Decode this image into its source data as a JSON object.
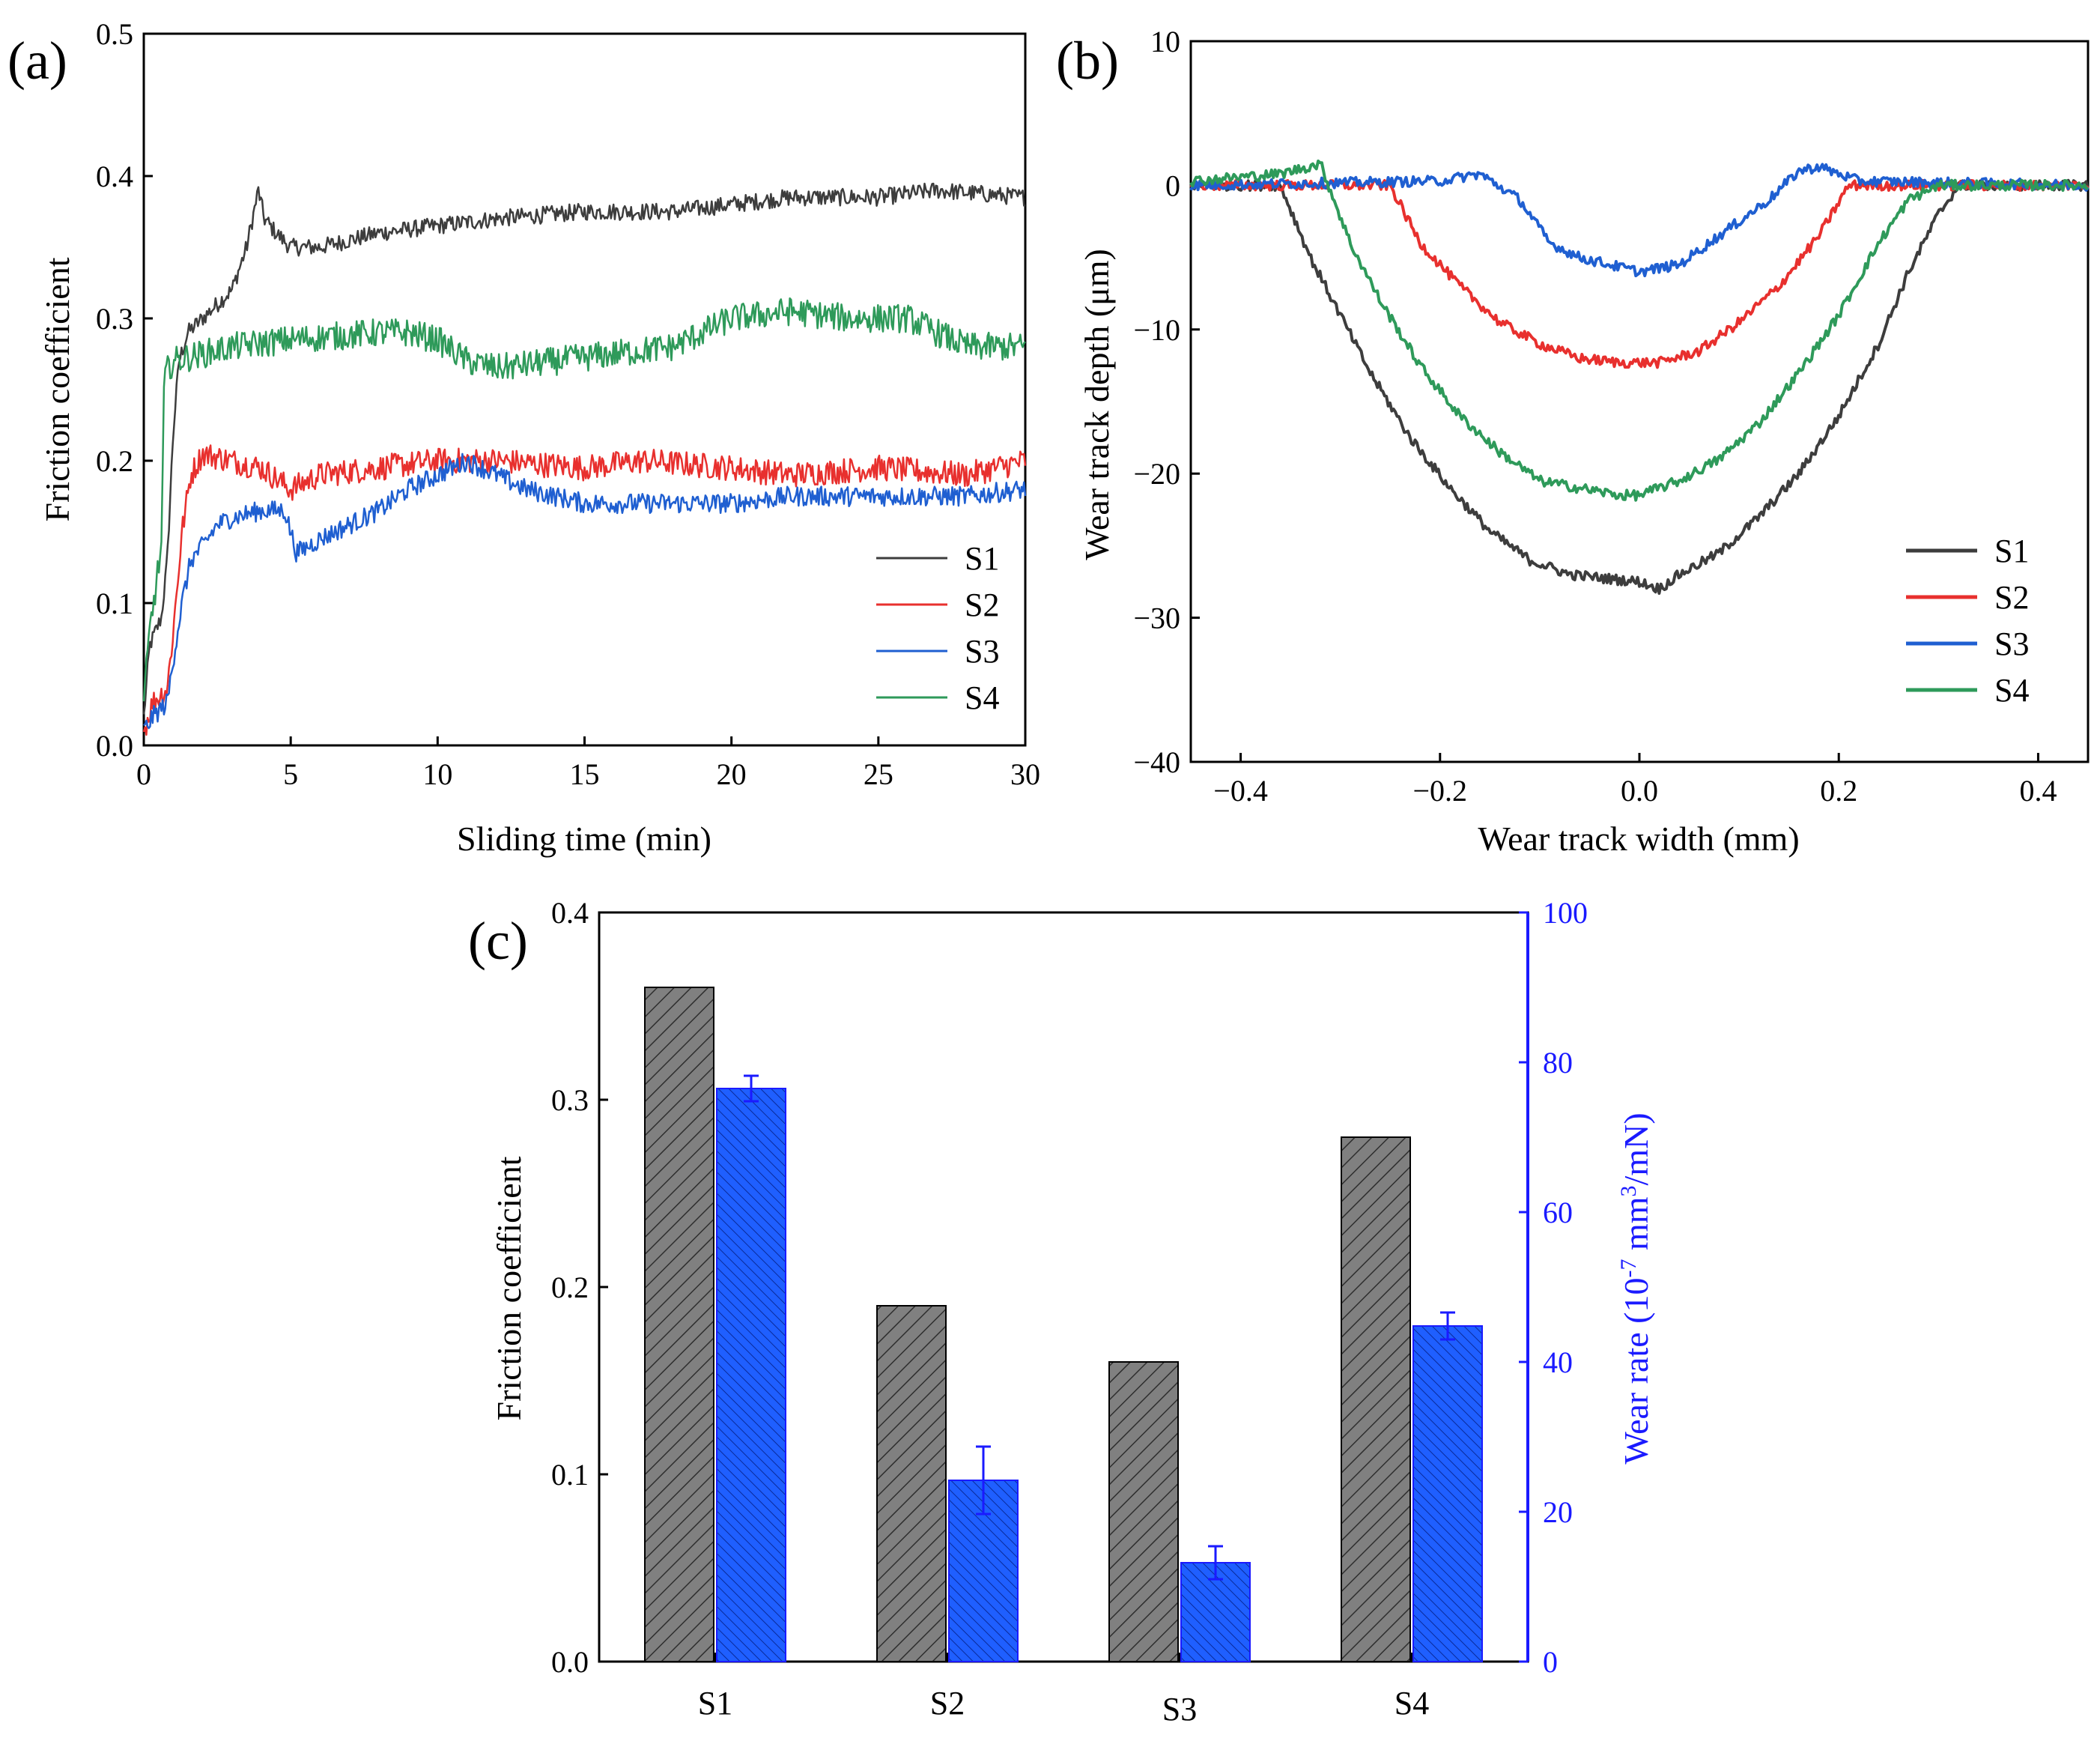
{
  "chart_data": [
    {
      "panel": "(a)",
      "type": "line",
      "xlabel": "Sliding time (min)",
      "ylabel": "Friction coefficient",
      "xlim": [
        0,
        30
      ],
      "ylim": [
        0.0,
        0.5
      ],
      "xticks": [
        "0",
        "5",
        "10",
        "15",
        "20",
        "25",
        "30"
      ],
      "yticks": [
        "0.0",
        "0.1",
        "0.2",
        "0.3",
        "0.4",
        "0.5"
      ],
      "legend_position": "bottom-right",
      "series": [
        {
          "name": "S1",
          "color": "#3d3d3d",
          "x": [
            0,
            0.2,
            0.6,
            0.8,
            1.0,
            1.2,
            1.5,
            2.0,
            2.5,
            3.0,
            3.5,
            3.9,
            4.1,
            4.5,
            5,
            6,
            7,
            8,
            10,
            12,
            15,
            18,
            20,
            22,
            25,
            27,
            30
          ],
          "y": [
            0.02,
            0.07,
            0.09,
            0.13,
            0.22,
            0.27,
            0.29,
            0.3,
            0.31,
            0.32,
            0.35,
            0.39,
            0.37,
            0.36,
            0.35,
            0.35,
            0.355,
            0.36,
            0.365,
            0.37,
            0.375,
            0.375,
            0.38,
            0.385,
            0.385,
            0.39,
            0.385
          ]
        },
        {
          "name": "S2",
          "color": "#e8302e",
          "x": [
            0,
            0.3,
            0.8,
            1.0,
            1.3,
            1.6,
            2.0,
            3,
            4,
            5,
            6,
            8,
            10,
            12,
            15,
            17,
            20,
            22,
            25,
            28,
            30
          ],
          "y": [
            0.01,
            0.03,
            0.04,
            0.08,
            0.15,
            0.19,
            0.205,
            0.2,
            0.195,
            0.18,
            0.19,
            0.195,
            0.2,
            0.2,
            0.195,
            0.2,
            0.195,
            0.19,
            0.195,
            0.19,
            0.2
          ]
        },
        {
          "name": "S3",
          "color": "#1f5fd1",
          "x": [
            0,
            0.3,
            0.8,
            1.0,
            1.3,
            1.6,
            2.0,
            2.5,
            3,
            4,
            4.8,
            5.2,
            6,
            7,
            8,
            9,
            10,
            11,
            12,
            13,
            14,
            15,
            17,
            20,
            22,
            25,
            28,
            30
          ],
          "y": [
            0.01,
            0.02,
            0.03,
            0.06,
            0.1,
            0.13,
            0.14,
            0.155,
            0.16,
            0.165,
            0.165,
            0.135,
            0.145,
            0.155,
            0.165,
            0.18,
            0.19,
            0.2,
            0.19,
            0.18,
            0.175,
            0.17,
            0.17,
            0.17,
            0.175,
            0.175,
            0.175,
            0.18
          ]
        },
        {
          "name": "S4",
          "color": "#2e9a5a",
          "x": [
            0,
            0.2,
            0.4,
            0.6,
            0.7,
            1.0,
            2,
            3,
            5,
            8,
            9,
            10,
            11,
            12,
            14,
            16,
            18,
            19,
            20,
            22,
            24,
            26,
            27,
            28,
            30
          ],
          "y": [
            0.03,
            0.08,
            0.11,
            0.14,
            0.26,
            0.27,
            0.275,
            0.28,
            0.285,
            0.29,
            0.29,
            0.285,
            0.27,
            0.265,
            0.27,
            0.275,
            0.28,
            0.29,
            0.3,
            0.305,
            0.3,
            0.3,
            0.29,
            0.28,
            0.28
          ]
        }
      ]
    },
    {
      "panel": "(b)",
      "type": "line",
      "xlabel": "Wear track width (mm)",
      "ylabel": "Wear track depth (μm)",
      "xlim": [
        -0.45,
        0.45
      ],
      "ylim": [
        -40,
        10
      ],
      "xticks": [
        "−0.4",
        "−0.2",
        "0.0",
        "0.2",
        "0.4"
      ],
      "xtick_values": [
        -0.4,
        -0.2,
        0.0,
        0.2,
        0.4
      ],
      "yticks": [
        "10",
        "0",
        "−10",
        "−20",
        "−30",
        "−40"
      ],
      "ytick_values": [
        10,
        0,
        -10,
        -20,
        -30,
        -40
      ],
      "legend_position": "bottom-right",
      "series": [
        {
          "name": "S1",
          "color": "#3d3d3d",
          "x": [
            -0.45,
            -0.36,
            -0.33,
            -0.3,
            -0.27,
            -0.23,
            -0.19,
            -0.15,
            -0.11,
            -0.07,
            -0.03,
            0.0,
            0.02,
            0.04,
            0.08,
            0.12,
            0.16,
            0.2,
            0.24,
            0.27,
            0.3,
            0.32,
            0.45
          ],
          "y": [
            0,
            0,
            -5,
            -9,
            -13,
            -17.5,
            -21,
            -24,
            -26,
            -27,
            -27.3,
            -27.5,
            -28,
            -27,
            -25.5,
            -23,
            -20,
            -16,
            -11,
            -6,
            -2,
            0,
            0
          ]
        },
        {
          "name": "S2",
          "color": "#e8302e",
          "x": [
            -0.45,
            -0.25,
            -0.22,
            -0.18,
            -0.14,
            -0.1,
            -0.06,
            -0.02,
            0.02,
            0.06,
            0.1,
            0.14,
            0.18,
            0.21,
            0.45
          ],
          "y": [
            0,
            0,
            -4,
            -7,
            -9.5,
            -11,
            -12,
            -12.3,
            -12.3,
            -11.5,
            -9.5,
            -7,
            -3.5,
            0,
            0
          ]
        },
        {
          "name": "S3",
          "color": "#1f5fd1",
          "x": [
            -0.45,
            -0.2,
            -0.16,
            -0.12,
            -0.09,
            -0.06,
            -0.03,
            0.0,
            0.04,
            0.07,
            0.1,
            0.13,
            0.16,
            0.18,
            0.22,
            0.45
          ],
          "y": [
            0,
            0.3,
            0.8,
            -1,
            -4,
            -5,
            -5.5,
            -6,
            -5.5,
            -4,
            -2.5,
            -1,
            1,
            1.3,
            0.3,
            0
          ]
        },
        {
          "name": "S4",
          "color": "#2e9a5a",
          "x": [
            -0.45,
            -0.36,
            -0.32,
            -0.29,
            -0.26,
            -0.22,
            -0.18,
            -0.14,
            -0.1,
            -0.06,
            -0.02,
            0.0,
            0.04,
            0.08,
            0.12,
            0.16,
            0.2,
            0.24,
            0.27,
            0.3,
            0.45
          ],
          "y": [
            0.3,
            0.8,
            1.5,
            -4,
            -8,
            -12.5,
            -16,
            -18.5,
            -20.5,
            -21,
            -21.5,
            -21.5,
            -20.5,
            -19,
            -16.5,
            -13,
            -9,
            -4,
            -1,
            0,
            0
          ]
        }
      ]
    },
    {
      "panel": "(c)",
      "type": "bar",
      "categories": [
        "S1",
        "S2",
        "S3",
        "S4"
      ],
      "ylabel": "Friction coefficient",
      "ylim": [
        0.0,
        0.4
      ],
      "yticks": [
        "0.0",
        "0.1",
        "0.2",
        "0.3",
        "0.4"
      ],
      "y2label_prefix": "Wear rate (10",
      "y2label_exp1": "-7",
      "y2label_mid": " mm",
      "y2label_exp2": "3",
      "y2label_suffix": "/mN)",
      "y2lim": [
        0,
        100
      ],
      "y2ticks": [
        "0",
        "20",
        "40",
        "60",
        "80",
        "100"
      ],
      "y2_color": "#1a1aff",
      "series": [
        {
          "axis": "left",
          "color": "#808080",
          "values": [
            0.36,
            0.19,
            0.16,
            0.28
          ]
        },
        {
          "axis": "right",
          "color": "#1f5fff",
          "values": [
            76.5,
            24.2,
            13.2,
            44.8
          ],
          "errors": [
            1.7,
            4.5,
            2.2,
            1.8
          ]
        }
      ]
    }
  ]
}
